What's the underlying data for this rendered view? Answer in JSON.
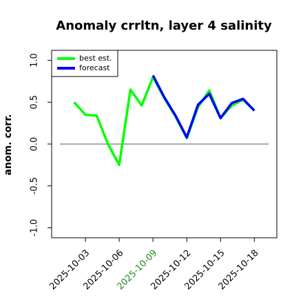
{
  "chart_data": {
    "type": "line",
    "title": "Anomaly crrltn, layer 4 salinity",
    "ylabel": "anom. corr.",
    "x": [
      "2025-10-02",
      "2025-10-03",
      "2025-10-04",
      "2025-10-05",
      "2025-10-06",
      "2025-10-07",
      "2025-10-08",
      "2025-10-09",
      "2025-10-10",
      "2025-10-11",
      "2025-10-12",
      "2025-10-13",
      "2025-10-14",
      "2025-10-15",
      "2025-10-16",
      "2025-10-17",
      "2025-10-18"
    ],
    "series": [
      {
        "name": "best est.",
        "color": "#00ff00",
        "values": [
          0.5,
          0.35,
          0.34,
          0.0,
          -0.25,
          0.65,
          0.46,
          0.8,
          0.55,
          0.33,
          0.07,
          0.44,
          0.64,
          0.31,
          0.46,
          0.53,
          0.4
        ]
      },
      {
        "name": "forecast",
        "color": "#0000ff",
        "values": [
          null,
          null,
          null,
          null,
          null,
          null,
          null,
          0.82,
          0.56,
          0.34,
          0.08,
          0.47,
          0.6,
          0.31,
          0.49,
          0.54,
          0.4
        ]
      }
    ],
    "xlim": [
      "2025-09-30",
      "2025-10-20"
    ],
    "xticks": [
      "2025-10-03",
      "2025-10-06",
      "2025-10-09",
      "2025-10-12",
      "2025-10-15",
      "2025-10-18"
    ],
    "highlight_xtick": "2025-10-09",
    "highlight_color": "#228b22",
    "ylim": [
      -1.12,
      1.12
    ],
    "yticks": [
      {
        "value": -1,
        "label": "-1.0"
      },
      {
        "value": -0.5,
        "label": "-0.5"
      },
      {
        "value": 0,
        "label": "0.0"
      },
      {
        "value": 0.5,
        "label": "0.5"
      },
      {
        "value": 1,
        "label": "1.0"
      }
    ],
    "reference_line": 0,
    "legend": "upper left"
  }
}
